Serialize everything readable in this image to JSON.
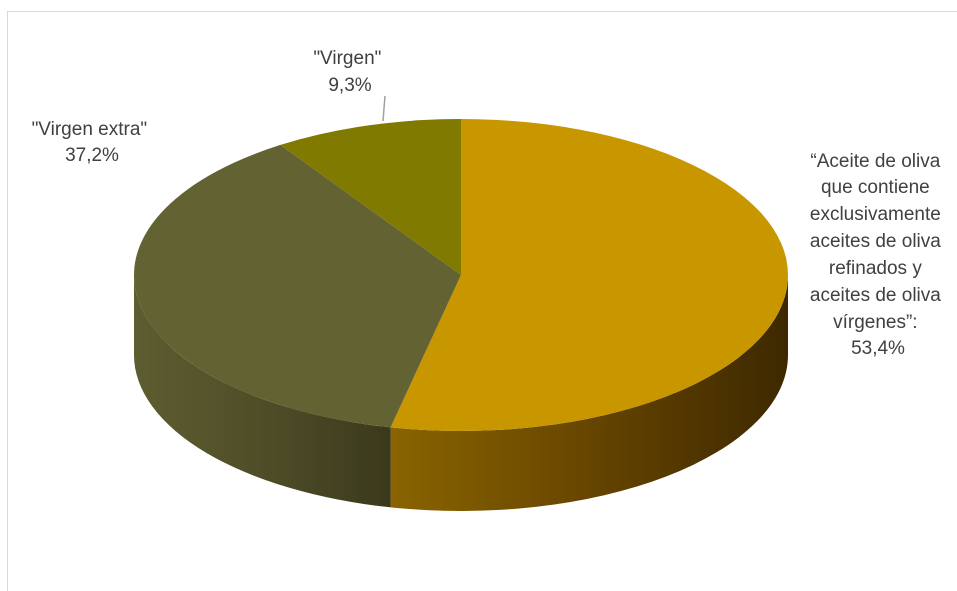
{
  "chart_data": {
    "type": "pie",
    "style": "3d",
    "slices": [
      {
        "label_lines": [
          "“Aceite de oliva",
          "que contiene",
          "exclusivamente",
          "aceites de oliva",
          "refinados y",
          "aceites de oliva",
          "vírgenes”:"
        ],
        "percent_text": "53,4%",
        "value": 53.4,
        "color": "#c89700"
      },
      {
        "label_lines": [
          "\"Virgen extra\""
        ],
        "percent_text": "37,2%",
        "value": 37.2,
        "color": "#636233"
      },
      {
        "label_lines": [
          "\"Virgen\""
        ],
        "percent_text": "9,3%",
        "value": 9.3,
        "color": "#807a00"
      }
    ]
  }
}
